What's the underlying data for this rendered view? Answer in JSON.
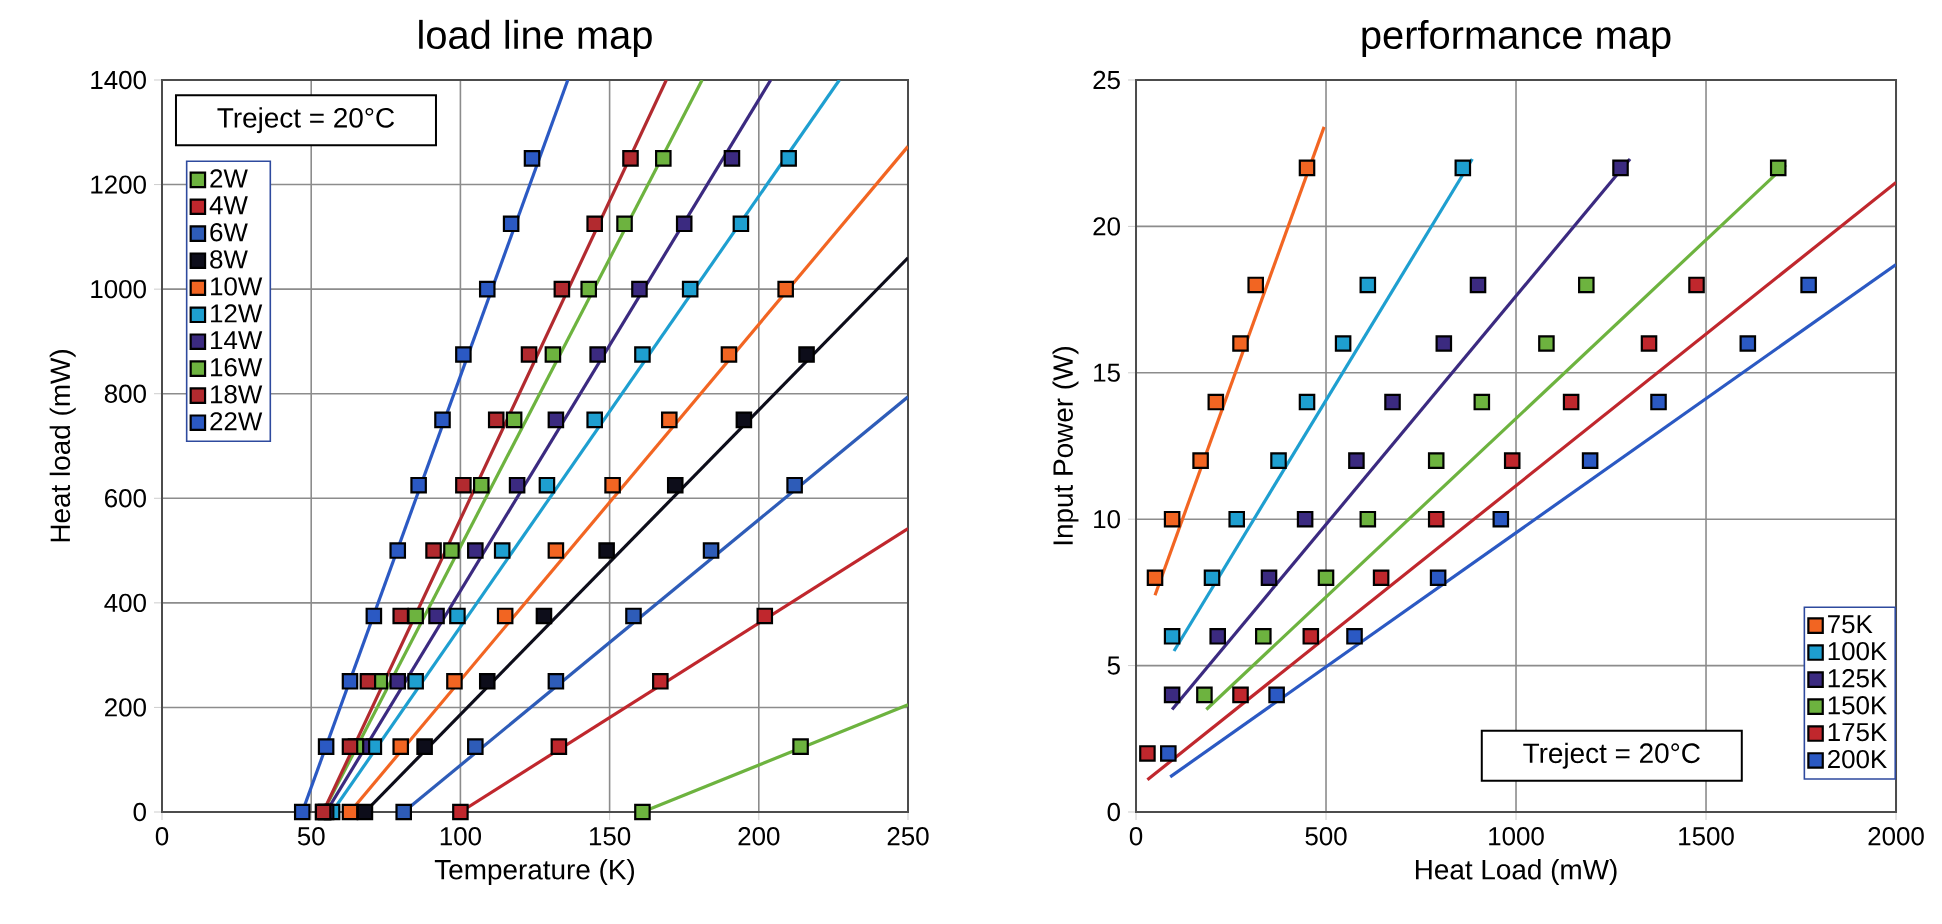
{
  "chart_data": [
    {
      "type": "scatter",
      "title": "load line map",
      "xlabel": "Temperature (K)",
      "ylabel": "Heat load (mW)",
      "xlim": [
        0,
        250
      ],
      "xticks": [
        0,
        50,
        100,
        150,
        200,
        250
      ],
      "ylim": [
        0,
        1400
      ],
      "yticks": [
        0,
        200,
        400,
        600,
        800,
        1000,
        1200,
        1400
      ],
      "grid": true,
      "legend": "top left",
      "annotations": [
        "Treject = 20°C"
      ],
      "series": [
        {
          "name": "2W",
          "marker": "square",
          "color": "#6db33f",
          "x": [
            161,
            214
          ],
          "values": [
            0,
            125
          ]
        },
        {
          "name": "4W",
          "marker": "square",
          "color": "#c0272d",
          "x": [
            100,
            133,
            167,
            202
          ],
          "values": [
            0,
            125,
            250,
            375
          ]
        },
        {
          "name": "6W",
          "marker": "square",
          "color": "#2e5cb8",
          "x": [
            81,
            105,
            132,
            158,
            184,
            212
          ],
          "values": [
            0,
            125,
            250,
            375,
            500,
            625
          ]
        },
        {
          "name": "8W",
          "marker": "square",
          "color": "#0d0d1a",
          "x": [
            68,
            88,
            109,
            128,
            149,
            172,
            195,
            216
          ],
          "values": [
            0,
            125,
            250,
            375,
            500,
            625,
            750,
            875
          ]
        },
        {
          "name": "10W",
          "marker": "square",
          "color": "#f26522",
          "x": [
            63,
            80,
            98,
            115,
            132,
            151,
            170,
            190,
            209
          ],
          "values": [
            0,
            125,
            250,
            375,
            500,
            625,
            750,
            875,
            1000
          ]
        },
        {
          "name": "12W",
          "marker": "square",
          "color": "#1e9fd0",
          "x": [
            57,
            71,
            85,
            99,
            114,
            129,
            145,
            161,
            177,
            194,
            210
          ],
          "values": [
            0,
            125,
            250,
            375,
            500,
            625,
            750,
            875,
            1000,
            1125,
            1250
          ]
        },
        {
          "name": "14W",
          "marker": "square",
          "color": "#3b2a80",
          "x": [
            55,
            67,
            79,
            92,
            105,
            119,
            132,
            146,
            160,
            175,
            191
          ],
          "values": [
            0,
            125,
            250,
            375,
            500,
            625,
            750,
            875,
            1000,
            1125,
            1250
          ]
        },
        {
          "name": "16W",
          "marker": "square",
          "color": "#6db33f",
          "x": [
            54,
            65,
            73,
            85,
            97,
            107,
            118,
            131,
            143,
            155,
            168
          ],
          "values": [
            0,
            125,
            250,
            375,
            500,
            625,
            750,
            875,
            1000,
            1125,
            1250
          ]
        },
        {
          "name": "18W",
          "marker": "square",
          "color": "#b22a2f",
          "x": [
            54,
            63,
            69,
            80,
            91,
            101,
            112,
            123,
            134,
            145,
            157
          ],
          "values": [
            0,
            125,
            250,
            375,
            500,
            625,
            750,
            875,
            1000,
            1125,
            1250
          ]
        },
        {
          "name": "22W",
          "marker": "square",
          "color": "#2b59c3",
          "x": [
            47,
            55,
            63,
            71,
            79,
            86,
            94,
            101,
            109,
            117,
            124
          ],
          "values": [
            0,
            125,
            250,
            375,
            500,
            625,
            750,
            875,
            1000,
            1125,
            1250
          ]
        },
        {
          "type": "line",
          "color": "#6db33f",
          "x": [
            161,
            250
          ],
          "values": [
            0,
            205
          ]
        },
        {
          "type": "line",
          "color": "#c0272d",
          "x": [
            100,
            250
          ],
          "values": [
            0,
            542
          ]
        },
        {
          "type": "line",
          "color": "#2e5cb8",
          "x": [
            81,
            250
          ],
          "values": [
            0,
            794
          ]
        },
        {
          "type": "line",
          "color": "#0d0d1a",
          "x": [
            68,
            250
          ],
          "values": [
            0,
            1060
          ]
        },
        {
          "type": "line",
          "color": "#f26522",
          "x": [
            63,
            250
          ],
          "values": [
            0,
            1273
          ]
        },
        {
          "type": "line",
          "color": "#1e9fd0",
          "x": [
            57,
            227
          ],
          "values": [
            0,
            1400
          ]
        },
        {
          "type": "line",
          "color": "#3b2a80",
          "x": [
            55,
            204
          ],
          "values": [
            0,
            1400
          ]
        },
        {
          "type": "line",
          "color": "#6db33f",
          "x": [
            54,
            181
          ],
          "values": [
            0,
            1400
          ]
        },
        {
          "type": "line",
          "color": "#b22a2f",
          "x": [
            54,
            169
          ],
          "values": [
            0,
            1400
          ]
        },
        {
          "type": "line",
          "color": "#2b59c3",
          "x": [
            47,
            136
          ],
          "values": [
            0,
            1400
          ]
        }
      ]
    },
    {
      "type": "scatter",
      "title": "performance map",
      "xlabel": "Heat Load (mW)",
      "ylabel": "Input Power (W)",
      "xlim": [
        0,
        2000
      ],
      "xticks": [
        0,
        500,
        1000,
        1500,
        2000
      ],
      "ylim": [
        0,
        25
      ],
      "yticks": [
        0,
        5,
        10,
        15,
        20,
        25
      ],
      "grid": true,
      "legend": "bottom right",
      "annotations": [
        "Treject = 20°C"
      ],
      "series": [
        {
          "name": "75K",
          "marker": "square",
          "color": "#f26522",
          "x": [
            50,
            95,
            170,
            210,
            275,
            315,
            450
          ],
          "values": [
            8,
            10,
            12,
            14,
            16,
            18,
            22
          ]
        },
        {
          "name": "100K",
          "marker": "square",
          "color": "#1e9fd0",
          "x": [
            95,
            200,
            265,
            375,
            450,
            545,
            610,
            860
          ],
          "values": [
            6,
            8,
            10,
            12,
            14,
            16,
            18,
            22
          ]
        },
        {
          "name": "125K",
          "marker": "square",
          "color": "#3b2a80",
          "x": [
            95,
            215,
            350,
            445,
            580,
            675,
            810,
            900,
            1275
          ],
          "values": [
            4,
            6,
            8,
            10,
            12,
            14,
            16,
            18,
            22
          ]
        },
        {
          "name": "150K",
          "marker": "square",
          "color": "#6db33f",
          "x": [
            180,
            335,
            500,
            610,
            790,
            910,
            1080,
            1185,
            1690
          ],
          "values": [
            4,
            6,
            8,
            10,
            12,
            14,
            16,
            18,
            22
          ]
        },
        {
          "name": "175K",
          "marker": "square",
          "color": "#c0272d",
          "x": [
            30,
            275,
            460,
            645,
            790,
            990,
            1145,
            1350,
            1475
          ],
          "values": [
            2,
            4,
            6,
            8,
            10,
            12,
            14,
            16,
            18
          ]
        },
        {
          "name": "200K",
          "marker": "square",
          "color": "#2b59c3",
          "x": [
            85,
            370,
            575,
            795,
            960,
            1195,
            1375,
            1610,
            1770
          ],
          "values": [
            2,
            4,
            6,
            8,
            10,
            12,
            14,
            16,
            18
          ]
        },
        {
          "type": "line",
          "color": "#f26522",
          "x": [
            50,
            495
          ],
          "values": [
            7.4,
            23.4
          ]
        },
        {
          "type": "line",
          "color": "#1e9fd0",
          "x": [
            100,
            885
          ],
          "values": [
            5.5,
            22.3
          ]
        },
        {
          "type": "line",
          "color": "#3b2a80",
          "x": [
            95,
            1300
          ],
          "values": [
            3.5,
            22.3
          ]
        },
        {
          "type": "line",
          "color": "#6db33f",
          "x": [
            185,
            1710
          ],
          "values": [
            3.5,
            22.1
          ]
        },
        {
          "type": "line",
          "color": "#c0272d",
          "x": [
            30,
            2000
          ],
          "values": [
            1.1,
            21.5
          ]
        },
        {
          "type": "line",
          "color": "#2b59c3",
          "x": [
            90,
            2000
          ],
          "values": [
            1.2,
            18.7
          ]
        }
      ]
    }
  ]
}
